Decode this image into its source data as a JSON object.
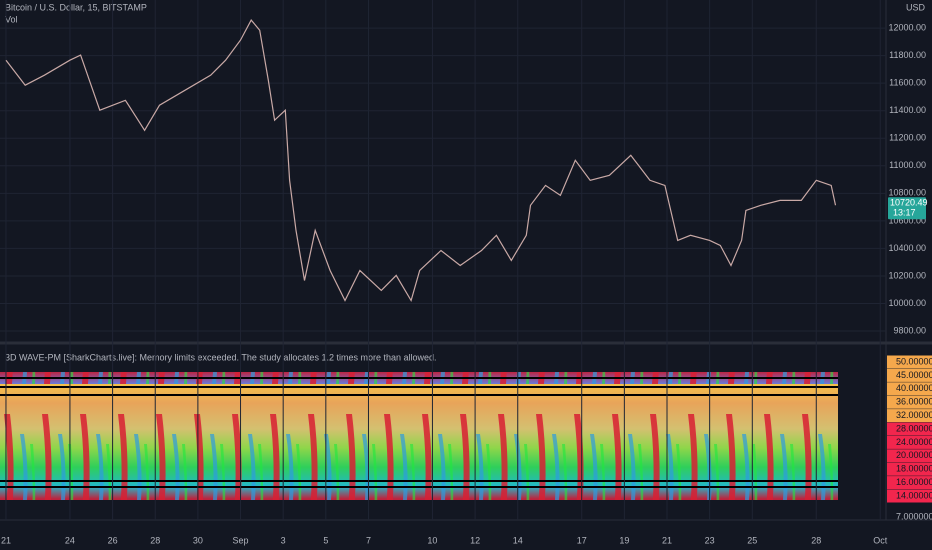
{
  "chart_data": [
    {
      "type": "line",
      "title": "Bitcoin / U.S. Dollar, 15, BITSTAMP",
      "subtitle": "Vol",
      "currency": "USD",
      "color": "#c9a9a6",
      "x": [
        0,
        0.9,
        1.8,
        3,
        3.5,
        4.4,
        5.6,
        6.5,
        7.2,
        8.4,
        9.6,
        10.3,
        11,
        11.5,
        11.9,
        12.3,
        12.6,
        13.1,
        13.3,
        13.6,
        14,
        14.5,
        15.2,
        15.9,
        16.6,
        17.6,
        18.3,
        19,
        19.4,
        20.4,
        21.3,
        22.3,
        23,
        23.7,
        24.4,
        24.6,
        25.3,
        26,
        26.7,
        27.4,
        28.3,
        29.3,
        30.2,
        30.9,
        31.5,
        32.1,
        33,
        33.5,
        34,
        34.5,
        34.7,
        35.4,
        36.3,
        37.3,
        38,
        38.7,
        38.9
      ],
      "series": [
        {
          "name": "BTCUSD",
          "color": "#c9a9a6",
          "values": [
            11767,
            11585,
            11658,
            11767,
            11804,
            11404,
            11476,
            11258,
            11440,
            11549,
            11658,
            11767,
            11913,
            12058,
            11985,
            11622,
            11331,
            11404,
            10895,
            10531,
            10167,
            10531,
            10240,
            10022,
            10240,
            10095,
            10204,
            10022,
            10240,
            10385,
            10276,
            10385,
            10495,
            10313,
            10495,
            10713,
            10858,
            10785,
            11040,
            10895,
            10931,
            11076,
            10895,
            10858,
            10458,
            10495,
            10458,
            10422,
            10276,
            10458,
            10676,
            10713,
            10749,
            10749,
            10895,
            10858,
            10713
          ]
        }
      ],
      "xlim": [
        -0.28,
        41.27
      ],
      "xticks": [
        {
          "value": 0,
          "label": "21"
        },
        {
          "value": 3,
          "label": "24"
        },
        {
          "value": 5,
          "label": "26"
        },
        {
          "value": 7,
          "label": "28"
        },
        {
          "value": 9,
          "label": "30"
        },
        {
          "value": 11,
          "label": "Sep"
        },
        {
          "value": 13,
          "label": "3"
        },
        {
          "value": 15,
          "label": "5"
        },
        {
          "value": 17,
          "label": "7"
        },
        {
          "value": 20,
          "label": "10"
        },
        {
          "value": 22,
          "label": "12"
        },
        {
          "value": 24,
          "label": "14"
        },
        {
          "value": 27,
          "label": "17"
        },
        {
          "value": 29,
          "label": "19"
        },
        {
          "value": 31,
          "label": "21"
        },
        {
          "value": 33,
          "label": "23"
        },
        {
          "value": 35,
          "label": "25"
        },
        {
          "value": 38,
          "label": "28"
        },
        {
          "value": 41,
          "label": "Oct"
        }
      ],
      "ylim": [
        9735,
        12204
      ],
      "yticks": [
        {
          "value": 9800,
          "label": "9800.00"
        },
        {
          "value": 10000,
          "label": "10000.00"
        },
        {
          "value": 10200,
          "label": "10200.00"
        },
        {
          "value": 10400,
          "label": "10400.00"
        },
        {
          "value": 10600,
          "label": "10600.00"
        },
        {
          "value": 10800,
          "label": "10800.00"
        },
        {
          "value": 11000,
          "label": "11000.00"
        },
        {
          "value": 11200,
          "label": "11200.00"
        },
        {
          "value": 11400,
          "label": "11400.00"
        },
        {
          "value": 11600,
          "label": "11600.00"
        },
        {
          "value": 11800,
          "label": "11800.00"
        },
        {
          "value": 12000,
          "label": "12000.00"
        }
      ],
      "last_price": 10720.49,
      "countdown": "13:17",
      "grid": true
    },
    {
      "type": "heatmap",
      "title": "3D WAVE-PM [SharkCharts.live]: Memory limits exceeded. The study allocates 1.2 times more than allowed.",
      "levels": [
        {
          "label": "50.0000000",
          "color": "#f5a84c"
        },
        {
          "label": "45.0000000",
          "color": "#f5a84c"
        },
        {
          "label": "40.0000000",
          "color": "#f5a84c"
        },
        {
          "label": "36.0000000",
          "color": "#f5a84c"
        },
        {
          "label": "32.0000000",
          "color": "#f5a84c"
        },
        {
          "label": "28.0000000",
          "color": "#f2264d"
        },
        {
          "label": "24.0000000",
          "color": "#f2264d"
        },
        {
          "label": "20.0000000",
          "color": "#f2264d"
        },
        {
          "label": "18.0000000",
          "color": "#f2264d"
        },
        {
          "label": "16.0000000",
          "color": "#f2264d"
        },
        {
          "label": "14.0000000",
          "color": "#f2264d"
        }
      ],
      "axis_label": "7.0000000"
    }
  ]
}
